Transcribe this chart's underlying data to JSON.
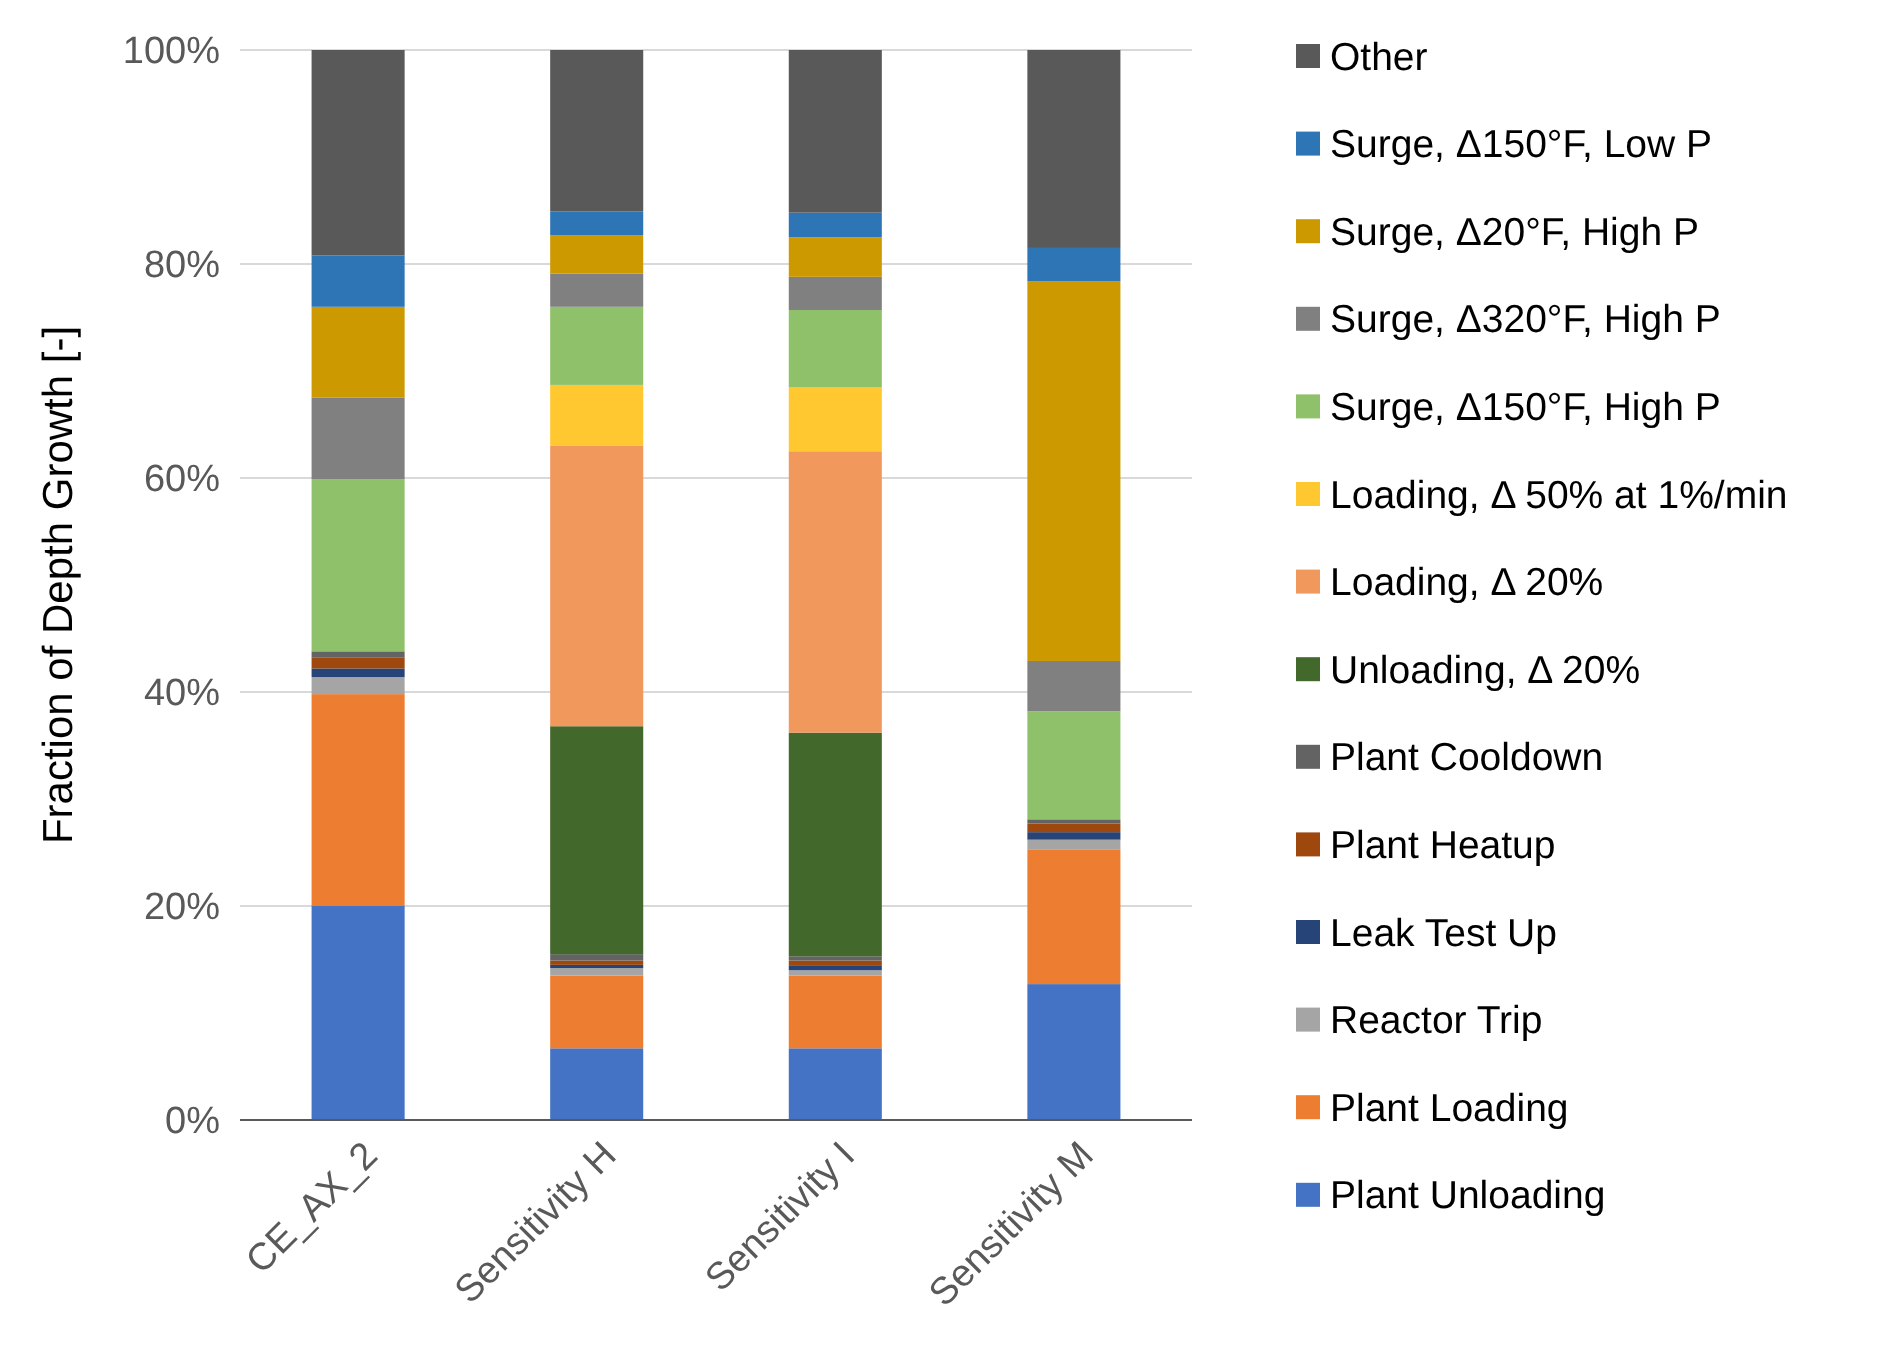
{
  "chart_data": {
    "type": "bar",
    "stacked": true,
    "ylabel": "Fraction of Depth Growth [-]",
    "categories": [
      "CE_AX_2",
      "Sensitivity H",
      "Sensitivity I",
      "Sensitivity M"
    ],
    "ylim": [
      0,
      100
    ],
    "yticks": [
      {
        "value": 0,
        "label": "0%"
      },
      {
        "value": 20,
        "label": "20%"
      },
      {
        "value": 40,
        "label": "40%"
      },
      {
        "value": 60,
        "label": "60%"
      },
      {
        "value": 80,
        "label": "80%"
      },
      {
        "value": 100,
        "label": "100%"
      }
    ],
    "grid": "y",
    "legend": "right",
    "series": [
      {
        "name": "Plant Unloading",
        "color": "#4472c4",
        "values": [
          20.0,
          6.7,
          6.7,
          12.7
        ]
      },
      {
        "name": "Plant Loading",
        "color": "#ed7d31",
        "values": [
          19.8,
          6.8,
          6.8,
          12.6
        ]
      },
      {
        "name": "Reactor Trip",
        "color": "#a5a5a5",
        "values": [
          1.6,
          0.7,
          0.5,
          0.9
        ]
      },
      {
        "name": "Leak Test Up",
        "color": "#264478",
        "values": [
          0.8,
          0.3,
          0.4,
          0.7
        ]
      },
      {
        "name": "Plant Heatup",
        "color": "#9e480e",
        "values": [
          1.0,
          0.4,
          0.5,
          0.8
        ]
      },
      {
        "name": "Plant Cooldown",
        "color": "#636363",
        "values": [
          0.6,
          0.6,
          0.4,
          0.4
        ]
      },
      {
        "name": "Unloading,  Δ 20%",
        "color": "#43682b",
        "values": [
          0,
          21.3,
          20.9,
          0
        ]
      },
      {
        "name": "Loading, Δ 20%",
        "color": "#f1995c",
        "values": [
          0,
          26.2,
          26.3,
          0
        ]
      },
      {
        "name": "Loading, Δ 50% at 1%/min",
        "color": "#ffc830",
        "values": [
          0,
          5.7,
          6.0,
          0
        ]
      },
      {
        "name": "Surge, Δ150°F, High P",
        "color": "#8fc16a",
        "values": [
          16.1,
          7.3,
          7.2,
          10.1
        ]
      },
      {
        "name": "Surge, Δ320°F, High P",
        "color": "#808080",
        "values": [
          7.6,
          3.1,
          3.1,
          4.7
        ]
      },
      {
        "name": "Surge, Δ20°F, High P",
        "color": "#cc9900",
        "values": [
          8.5,
          3.6,
          3.7,
          35.5
        ]
      },
      {
        "name": "Surge, Δ150°F, Low P",
        "color": "#2e75b6",
        "values": [
          4.8,
          2.2,
          2.3,
          3.1
        ]
      },
      {
        "name": "Other",
        "color": "#595959",
        "values": [
          19.2,
          15.1,
          15.2,
          18.5
        ]
      }
    ]
  }
}
